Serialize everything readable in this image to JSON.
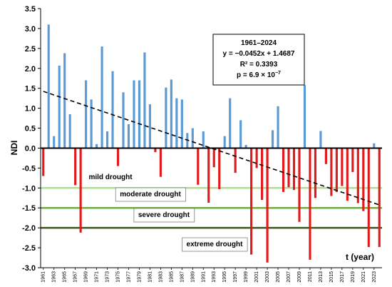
{
  "chart_data": {
    "type": "bar",
    "xlabel": "t (year)",
    "ylabel": "NDI",
    "ylim": [
      -3.0,
      3.5
    ],
    "yticks": [
      "3.5",
      "3.0",
      "2.5",
      "2.0",
      "1.5",
      "1.0",
      "0.5",
      "0.0",
      "-0.5",
      "-1.0",
      "-1.5",
      "-2.0",
      "-2.5",
      "-3.0"
    ],
    "grid": false,
    "colors": {
      "positive": "#5b9bd5",
      "negative": "#e31a1c",
      "trend": "#000000"
    },
    "x": [
      1961,
      1962,
      1963,
      1964,
      1965,
      1966,
      1967,
      1968,
      1969,
      1970,
      1971,
      1972,
      1973,
      1974,
      1975,
      1976,
      1977,
      1978,
      1979,
      1980,
      1981,
      1982,
      1983,
      1984,
      1985,
      1986,
      1987,
      1988,
      1989,
      1990,
      1991,
      1992,
      1993,
      1994,
      1995,
      1996,
      1997,
      1998,
      1999,
      2000,
      2001,
      2002,
      2003,
      2004,
      2005,
      2006,
      2007,
      2008,
      2009,
      2010,
      2011,
      2012,
      2013,
      2014,
      2015,
      2016,
      2017,
      2018,
      2019,
      2020,
      2021,
      2022,
      2023,
      2024
    ],
    "xtick_labels": [
      "1961",
      "1963",
      "1965",
      "1967",
      "1969",
      "1971",
      "1973",
      "1975",
      "1977",
      "1979",
      "1981",
      "1983",
      "1985",
      "1987",
      "1989",
      "1991",
      "1993",
      "1995",
      "1997",
      "1999",
      "2001",
      "2003",
      "2005",
      "2007",
      "2009",
      "2011",
      "2013",
      "2015",
      "2017",
      "2019",
      "2021",
      "2023"
    ],
    "values": [
      -0.7,
      3.1,
      0.3,
      2.07,
      2.38,
      0.85,
      -0.93,
      -2.12,
      1.7,
      1.22,
      0.1,
      2.55,
      0.42,
      1.93,
      -0.45,
      1.4,
      0.6,
      1.7,
      1.7,
      2.4,
      1.1,
      -0.1,
      -0.72,
      1.52,
      1.72,
      1.25,
      1.22,
      0.38,
      0.5,
      -0.92,
      0.42,
      -1.37,
      -0.48,
      -1.03,
      0.3,
      1.25,
      -0.62,
      0.7,
      0.08,
      -2.67,
      -0.5,
      -1.3,
      -2.87,
      0.45,
      1.05,
      -1.1,
      -0.98,
      -1.05,
      -1.85,
      1.58,
      -2.8,
      -1.25,
      0.43,
      -0.4,
      -1.2,
      -1.1,
      -0.95,
      -1.32,
      -0.6,
      -1.38,
      -1.58,
      -2.48,
      0.12,
      -2.48
    ],
    "trendline": {
      "slope": -0.0452,
      "intercept": 1.4687,
      "period": "1961–2024",
      "equation": "y = −0.0452x + 1.4687",
      "r2": "R² = 0.3393",
      "p": "p = 6.9 × 10",
      "p_exp": "−7"
    },
    "thresholds": [
      {
        "value": -1.0,
        "label": "mild drought",
        "color": "#b5d99c",
        "text_color": "#b5d99c"
      },
      {
        "value": -1.5,
        "label": "moderate drought",
        "color": "#70ad47",
        "text_color": "#548235"
      },
      {
        "value": -2.0,
        "label": "severe drought",
        "color": "#385723",
        "text_color": "#385723"
      },
      {
        "value": -2.5,
        "label": "extreme drought",
        "color": null,
        "text_color": "#000000"
      }
    ]
  }
}
